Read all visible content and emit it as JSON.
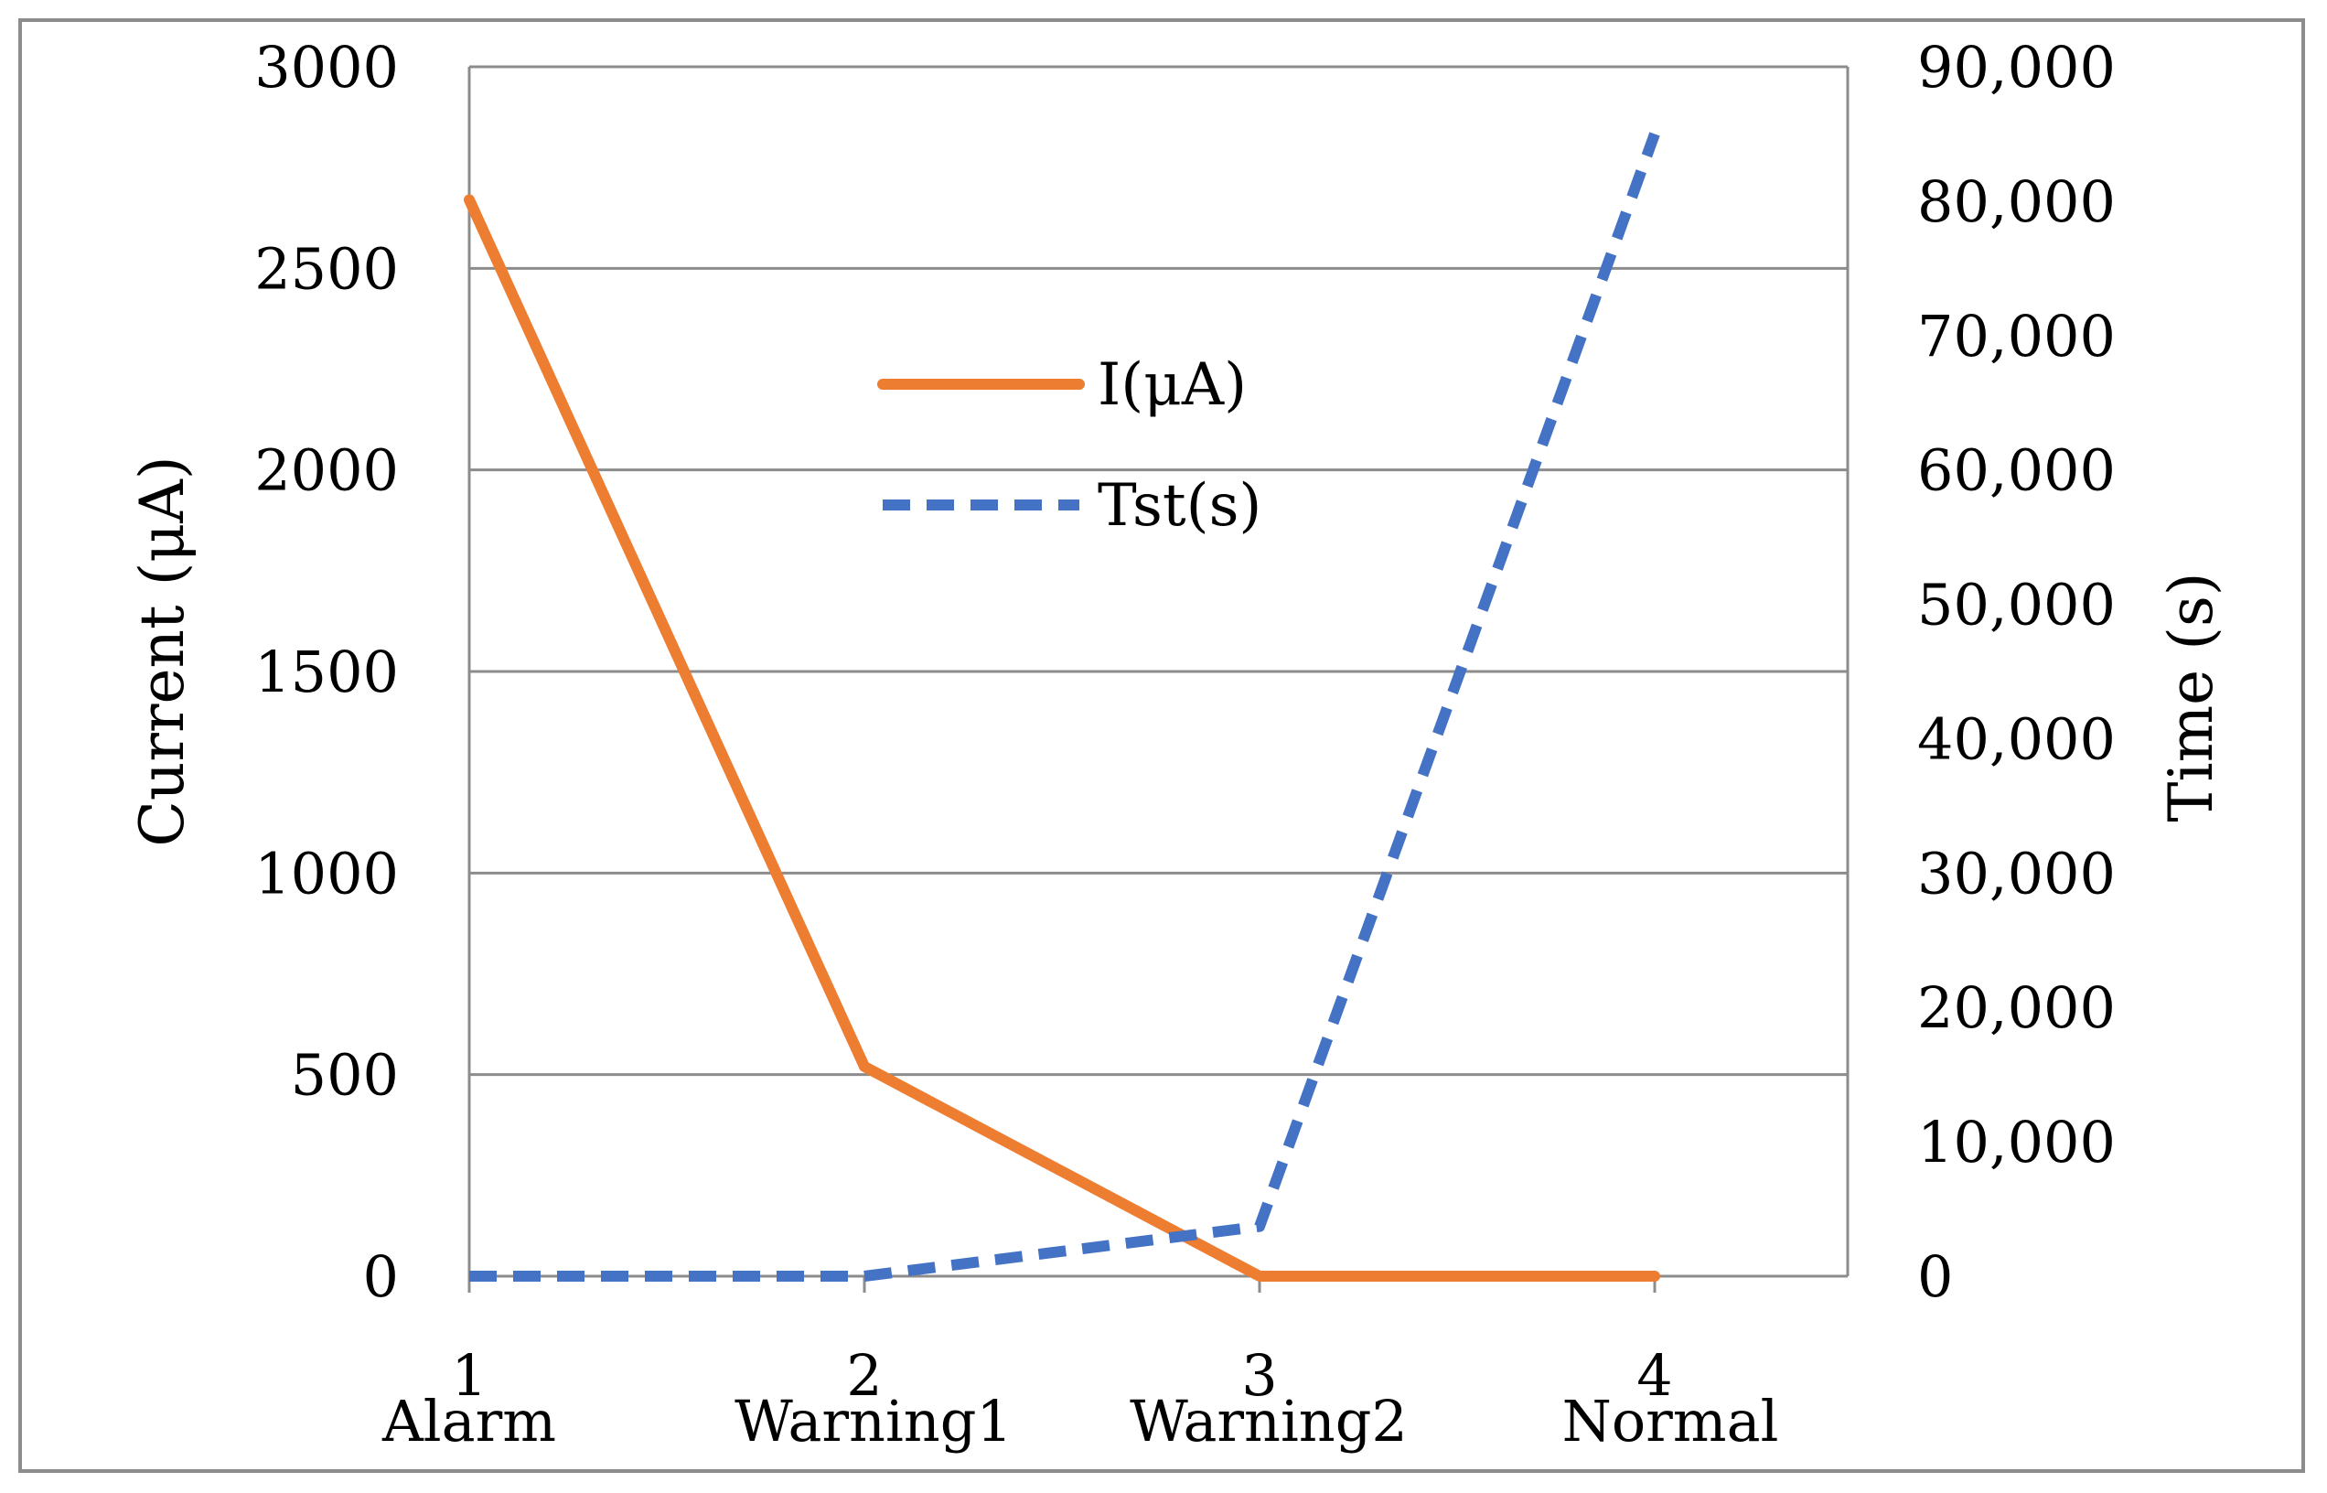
{
  "chart_data": {
    "type": "line",
    "title": "",
    "categories": [
      "1",
      "2",
      "3",
      "4"
    ],
    "category_sublabels": [
      "Alarm",
      "Warning1",
      "Warning2",
      "Normal"
    ],
    "xlabel": "",
    "ylabel": "Current (μA)",
    "y2label": "Time (s)",
    "ylim": [
      0,
      3000
    ],
    "y2lim": [
      0,
      90000
    ],
    "yticks": [
      "0",
      "500",
      "1000",
      "1500",
      "2000",
      "2500",
      "3000"
    ],
    "y2ticks": [
      "0",
      "10,000",
      "20,000",
      "30,000",
      "40,000",
      "50,000",
      "60,000",
      "70,000",
      "80,000",
      "90,000"
    ],
    "grid": true,
    "legend_position": "upper-center",
    "series": [
      {
        "name": "I(μA)",
        "axis": "left",
        "style": "solid",
        "color": "#ED7D31",
        "values": [
          2670,
          520,
          0,
          0
        ]
      },
      {
        "name": "Tst(s)",
        "axis": "right",
        "style": "dashed",
        "color": "#4472C4",
        "values": [
          0,
          0,
          3700,
          85000
        ]
      }
    ]
  }
}
